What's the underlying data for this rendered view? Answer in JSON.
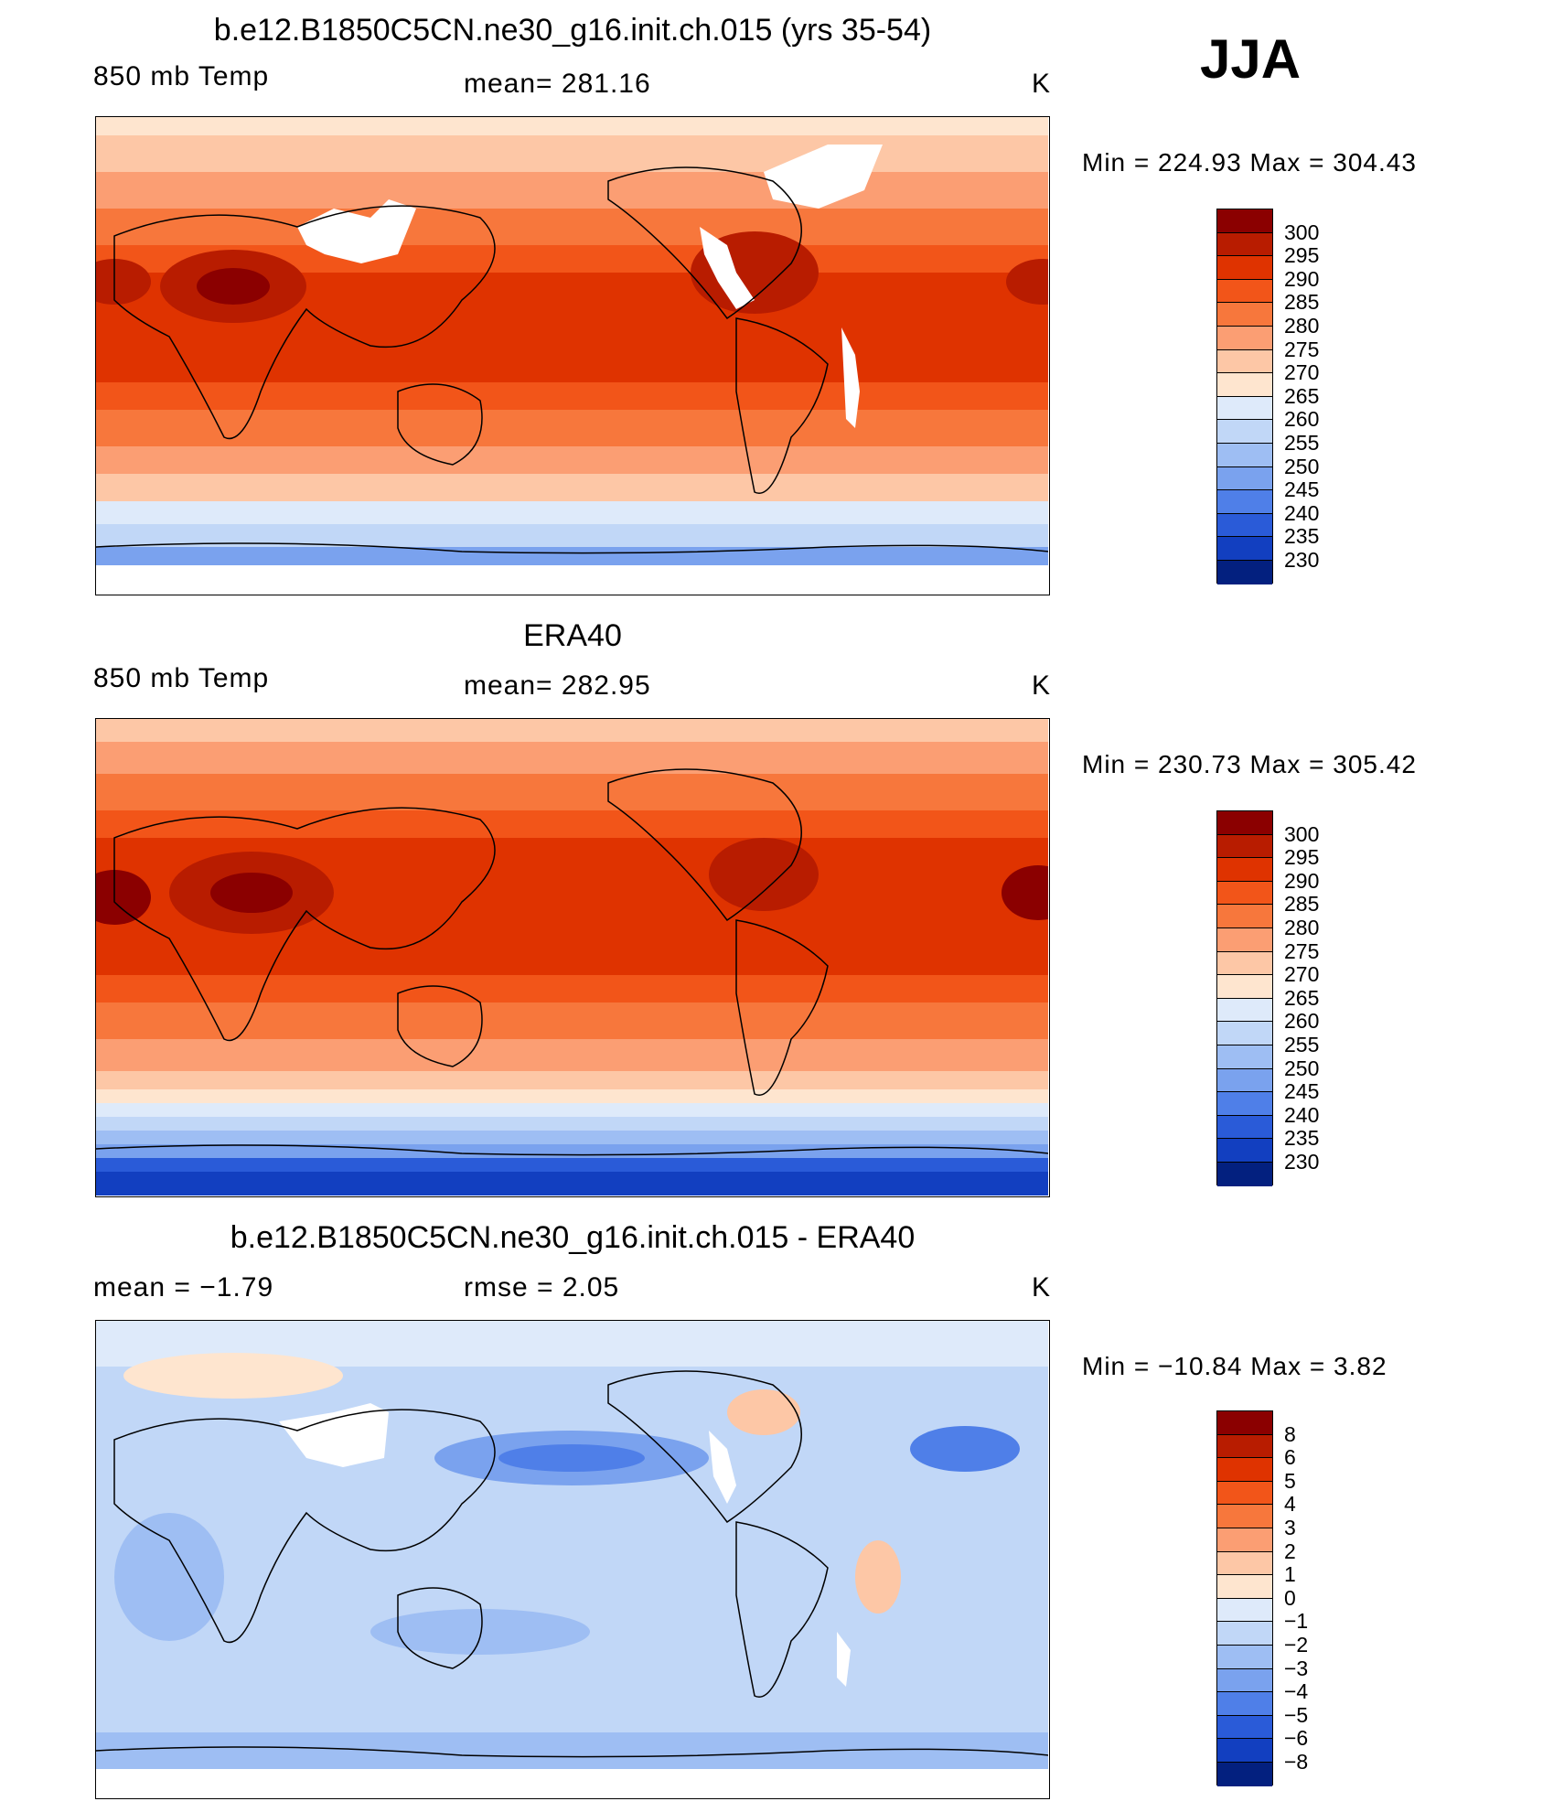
{
  "season": "JJA",
  "panels": [
    {
      "title": "b.e12.B1850C5CN.ne30_g16.init.ch.015 (yrs 35-54)",
      "left": "850 mb Temp",
      "center": "mean=  281.16",
      "units": "K",
      "minmax": "Min  =  224.93  Max  =  304.43",
      "colorbar": {
        "labels": [
          "300",
          "295",
          "290",
          "285",
          "280",
          "275",
          "270",
          "265",
          "260",
          "255",
          "250",
          "245",
          "240",
          "235",
          "230"
        ],
        "colors": [
          "#8b0000",
          "#b81c00",
          "#df3300",
          "#f25519",
          "#f7773c",
          "#fb9e73",
          "#fdc7a6",
          "#fee5cf",
          "#deeafa",
          "#c1d7f7",
          "#9ebef3",
          "#7aa2ee",
          "#4f7fe8",
          "#2a5bd8",
          "#123fc0",
          "#03207f"
        ]
      }
    },
    {
      "title": "ERA40",
      "left": "850 mb Temp",
      "center": "mean=  282.95",
      "units": "K",
      "minmax": "Min  =  230.73  Max  =  305.42",
      "colorbar": {
        "labels": [
          "300",
          "295",
          "290",
          "285",
          "280",
          "275",
          "270",
          "265",
          "260",
          "255",
          "250",
          "245",
          "240",
          "235",
          "230"
        ],
        "colors": [
          "#8b0000",
          "#b81c00",
          "#df3300",
          "#f25519",
          "#f7773c",
          "#fb9e73",
          "#fdc7a6",
          "#fee5cf",
          "#deeafa",
          "#c1d7f7",
          "#9ebef3",
          "#7aa2ee",
          "#4f7fe8",
          "#2a5bd8",
          "#123fc0",
          "#03207f"
        ]
      }
    },
    {
      "title": "b.e12.B1850C5CN.ne30_g16.init.ch.015 - ERA40",
      "left": "mean  =     −1.79",
      "center": "rmse  =     2.05",
      "units": "K",
      "minmax": "Min  =  −10.84  Max  =      3.82",
      "colorbar": {
        "labels": [
          "8",
          "6",
          "5",
          "4",
          "3",
          "2",
          "1",
          "0",
          "−1",
          "−2",
          "−3",
          "−4",
          "−5",
          "−6",
          "−8"
        ],
        "colors": [
          "#8b0000",
          "#b81c00",
          "#df3300",
          "#f25519",
          "#f7773c",
          "#fb9e73",
          "#fdc7a6",
          "#fee5cf",
          "#deeafa",
          "#c1d7f7",
          "#9ebef3",
          "#7aa2ee",
          "#4f7fe8",
          "#2a5bd8",
          "#123fc0",
          "#03207f"
        ]
      }
    }
  ]
}
